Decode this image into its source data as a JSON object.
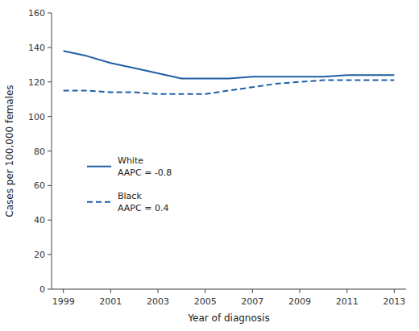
{
  "chart_data": {
    "type": "line",
    "x_label": "Year of diagnosis",
    "y_label": "Cases per 100,000 females",
    "x": [
      1999,
      2000,
      2001,
      2002,
      2003,
      2004,
      2005,
      2006,
      2007,
      2008,
      2009,
      2010,
      2011,
      2012,
      2013
    ],
    "series": [
      {
        "name": "White\nAAPC = -0.8",
        "color": "#1f5fa6",
        "line_style": "solid",
        "values": [
          138,
          135,
          131,
          128,
          125,
          122,
          122,
          122,
          123,
          123,
          123,
          123,
          124,
          124,
          124
        ]
      },
      {
        "name": "Black\nAAPC = 0.4",
        "color": "#1f5fa6",
        "line_style": "dashed",
        "values": [
          115,
          115,
          114,
          114,
          113,
          113,
          113,
          115,
          117,
          119,
          120,
          121,
          121,
          121,
          121
        ]
      }
    ],
    "xlim": [
      1998.5,
      2013.5
    ],
    "ylim": [
      0,
      160
    ],
    "xticks": [
      1999,
      2001,
      2003,
      2005,
      2007,
      2009,
      2011,
      2013
    ],
    "yticks": [
      0,
      20,
      40,
      60,
      80,
      100,
      120,
      140,
      160
    ],
    "grid": false,
    "legend": "center left"
  }
}
